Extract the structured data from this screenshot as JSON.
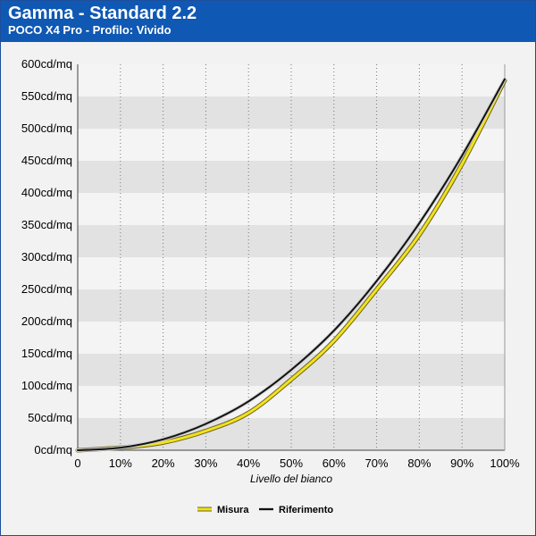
{
  "header": {
    "title": "Gamma - Standard 2.2",
    "subtitle": "POCO X4 Pro - Profilo: Vivido"
  },
  "colors": {
    "header_bg": "#0f58b3",
    "band_dark": "#e2e2e2",
    "band_light": "#f4f4f4",
    "measure": "#f2e21e",
    "reference": "#111111"
  },
  "chart_data": {
    "type": "line",
    "title": "Gamma - Standard 2.2",
    "subtitle": "POCO X4 Pro - Profilo: Vivido",
    "xlabel": "Livello del bianco",
    "ylabel": "",
    "x_tick_labels": [
      "0",
      "10%",
      "20%",
      "30%",
      "40%",
      "50%",
      "60%",
      "70%",
      "80%",
      "90%",
      "100%"
    ],
    "y_tick_labels": [
      "0cd/mq",
      "50cd/mq",
      "100cd/mq",
      "150cd/mq",
      "200cd/mq",
      "250cd/mq",
      "300cd/mq",
      "350cd/mq",
      "400cd/mq",
      "450cd/mq",
      "500cd/mq",
      "550cd/mq",
      "600cd/mq"
    ],
    "xlim": [
      0,
      100
    ],
    "ylim": [
      0,
      600
    ],
    "grid": {
      "vertical": "dotted",
      "horizontal_bands": true
    },
    "legend_position": "bottom-center",
    "x": [
      0,
      10,
      20,
      30,
      40,
      50,
      60,
      70,
      80,
      90,
      100
    ],
    "series": [
      {
        "name": "Misura",
        "values": [
          0,
          4,
          12,
          30,
          58,
          110,
          170,
          250,
          335,
          445,
          575
        ]
      },
      {
        "name": "Riferimento",
        "values": [
          0,
          4,
          17,
          41,
          76,
          125,
          186,
          263,
          353,
          458,
          577
        ]
      }
    ]
  }
}
